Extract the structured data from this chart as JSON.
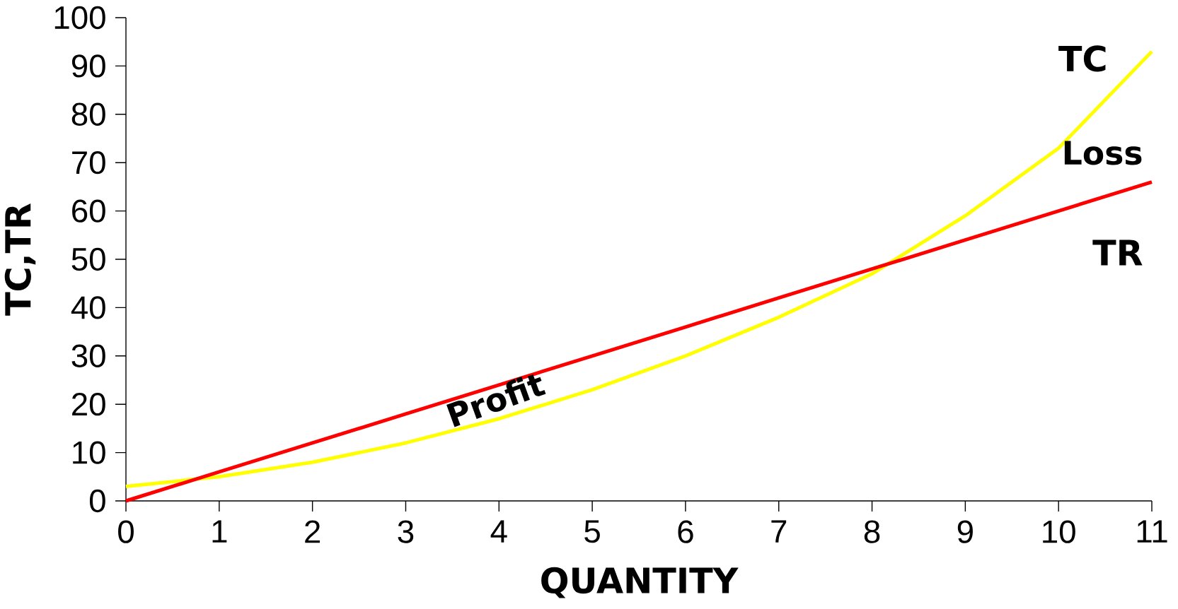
{
  "chart_data": {
    "type": "line",
    "xlabel": "QUANTITY",
    "ylabel": "TC,TR",
    "x": [
      0,
      1,
      2,
      3,
      4,
      5,
      6,
      7,
      8,
      9,
      10,
      11
    ],
    "series": [
      {
        "name": "TC",
        "color": "#ffff00",
        "values": [
          3,
          5,
          8,
          12,
          17,
          23,
          30,
          38,
          47,
          59,
          73,
          93
        ]
      },
      {
        "name": "TR",
        "color": "#ff0000",
        "values": [
          0,
          6,
          12,
          18,
          24,
          30,
          36,
          42,
          48,
          54,
          60,
          66
        ]
      }
    ],
    "xlim": [
      0,
      11
    ],
    "ylim": [
      0,
      100
    ],
    "xticks": [
      0,
      1,
      2,
      3,
      4,
      5,
      6,
      7,
      8,
      9,
      10,
      11
    ],
    "yticks": [
      0,
      10,
      20,
      30,
      40,
      50,
      60,
      70,
      80,
      90,
      100
    ],
    "annotations": [
      "Profit",
      "Loss"
    ],
    "grid": false,
    "legend": false,
    "marker": "none",
    "line_style": "solid"
  }
}
